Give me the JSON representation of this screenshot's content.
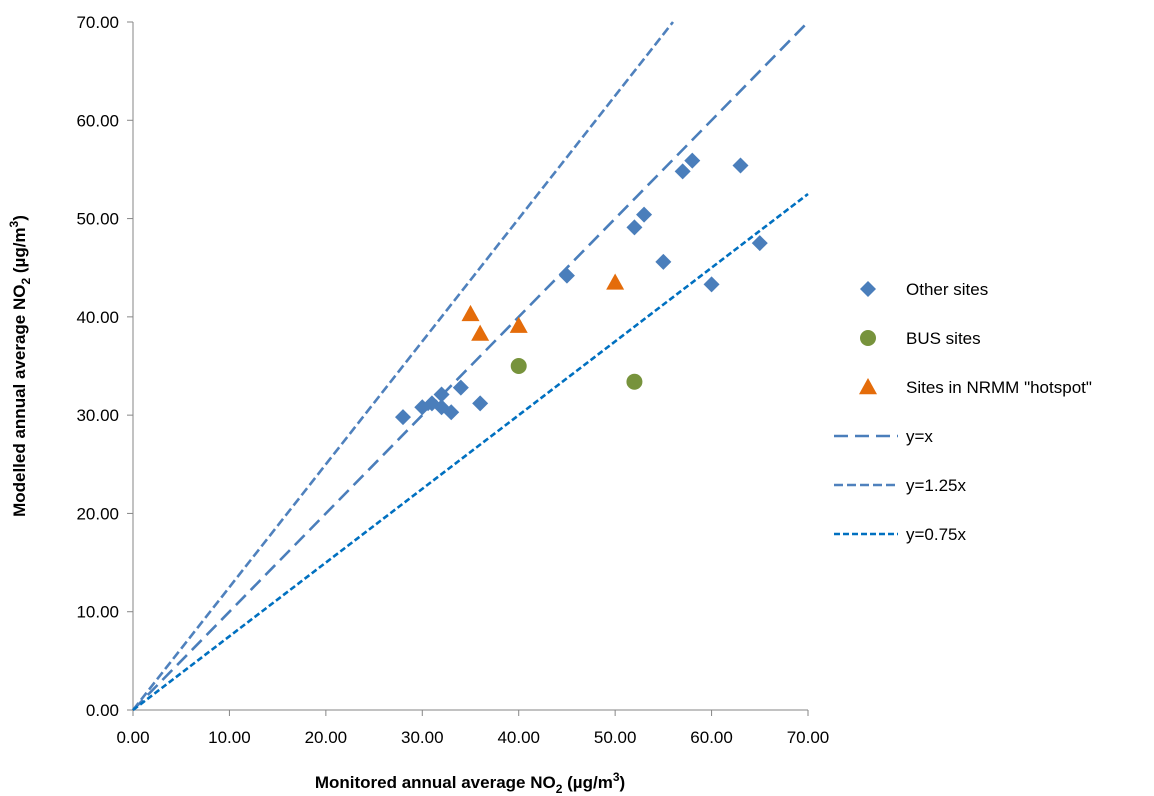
{
  "chart_data": {
    "type": "scatter",
    "title": "",
    "xlabel": {
      "main": "Monitored annual average NO",
      "sub": "2",
      "unit_open": " (µg/m",
      "sup": "3",
      "unit_close": ")"
    },
    "ylabel": {
      "main": "Modelled annual average NO",
      "sub": "2",
      "unit_open": " (µg/m",
      "sup": "3",
      "unit_close": ")"
    },
    "xlim": [
      0,
      70
    ],
    "ylim": [
      0,
      70
    ],
    "x_ticks": [
      "0.00",
      "10.00",
      "20.00",
      "30.00",
      "40.00",
      "50.00",
      "60.00",
      "70.00"
    ],
    "y_ticks": [
      "0.00",
      "10.00",
      "20.00",
      "30.00",
      "40.00",
      "50.00",
      "60.00",
      "70.00"
    ],
    "grid": false,
    "legend_position": "right",
    "series": [
      {
        "name": "Other sites",
        "marker": "diamond",
        "color": "#4a7ebb",
        "points": [
          [
            28,
            29.8
          ],
          [
            30,
            30.8
          ],
          [
            31,
            31.2
          ],
          [
            32,
            30.8
          ],
          [
            32,
            32.1
          ],
          [
            33,
            30.3
          ],
          [
            34,
            32.8
          ],
          [
            36,
            31.2
          ],
          [
            45,
            44.2
          ],
          [
            52,
            49.1
          ],
          [
            53,
            50.4
          ],
          [
            55,
            45.6
          ],
          [
            57,
            54.8
          ],
          [
            58,
            55.9
          ],
          [
            60,
            43.3
          ],
          [
            63,
            55.4
          ],
          [
            65,
            47.5
          ]
        ]
      },
      {
        "name": "BUS sites",
        "marker": "circle",
        "color": "#77933c",
        "points": [
          [
            40,
            35.0
          ],
          [
            52,
            33.4
          ]
        ]
      },
      {
        "name": "Sites in NRMM \"hotspot\"",
        "marker": "triangle",
        "color": "#e46c0a",
        "points": [
          [
            35,
            40.3
          ],
          [
            36,
            38.3
          ],
          [
            40,
            39.1
          ],
          [
            50,
            43.5
          ]
        ]
      }
    ],
    "lines": [
      {
        "name": "y=x",
        "slope": 1.0,
        "color": "#4a7ebb",
        "dash": "14,7"
      },
      {
        "name": "y=1.25x",
        "slope": 1.25,
        "color": "#4f81bd",
        "dash": "9,4"
      },
      {
        "name": "y=0.75x",
        "slope": 0.75,
        "color": "#0070c0",
        "dash": "6,3"
      }
    ]
  }
}
